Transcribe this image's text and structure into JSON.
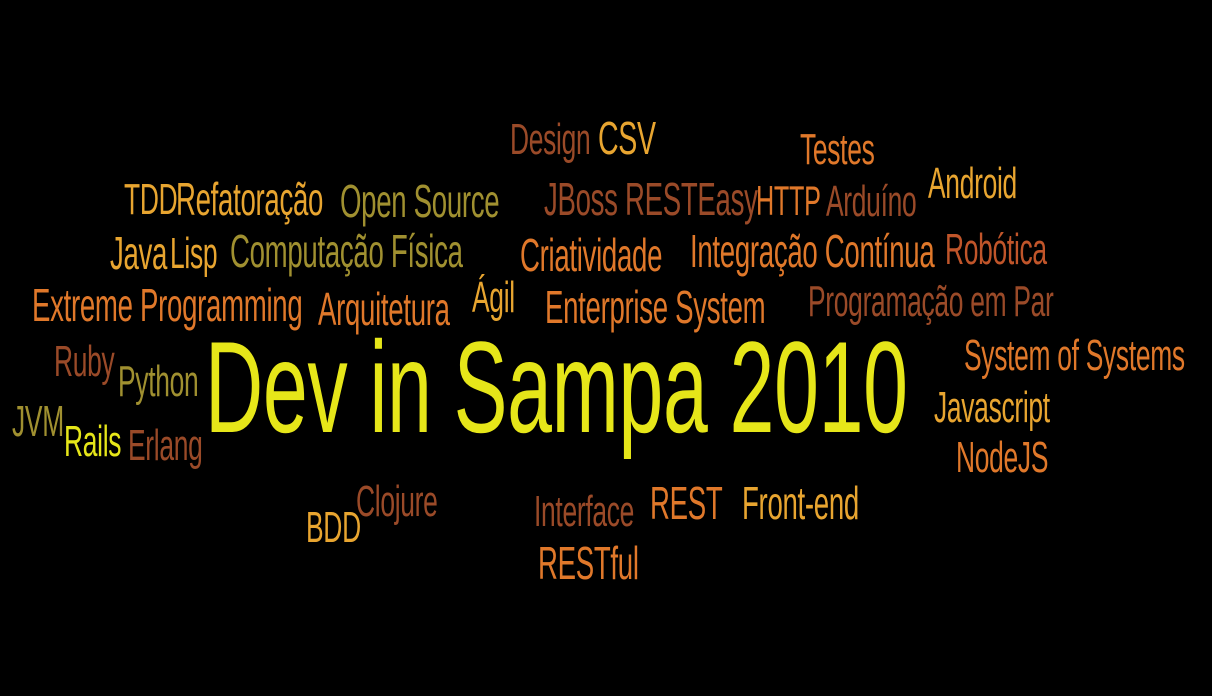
{
  "title": "Dev in Sampa 2010",
  "colors": {
    "background": "#000000",
    "yellow": "#e6e619",
    "amber": "#e8a530",
    "orange": "#e0782a",
    "rust": "#c0552a",
    "brown": "#9a4a28",
    "olive": "#a09030",
    "khaki": "#b8a040"
  },
  "words": [
    {
      "id": "title",
      "text": "Dev in Sampa 2010"
    },
    {
      "id": "design",
      "text": "Design"
    },
    {
      "id": "csv",
      "text": "CSV"
    },
    {
      "id": "testes",
      "text": "Testes"
    },
    {
      "id": "android",
      "text": "Android"
    },
    {
      "id": "tdd",
      "text": "TDD"
    },
    {
      "id": "refatoracao",
      "text": "Refatoração"
    },
    {
      "id": "open-source",
      "text": "Open Source"
    },
    {
      "id": "jboss",
      "text": "JBoss RESTEasy"
    },
    {
      "id": "http",
      "text": "HTTP"
    },
    {
      "id": "arduino",
      "text": "Arduíno"
    },
    {
      "id": "java",
      "text": "Java"
    },
    {
      "id": "lisp",
      "text": "Lisp"
    },
    {
      "id": "computacao-fisica",
      "text": "Computação Física"
    },
    {
      "id": "criatividade",
      "text": "Criatividade"
    },
    {
      "id": "integracao-continua",
      "text": "Integração Contínua"
    },
    {
      "id": "robotica",
      "text": "Robótica"
    },
    {
      "id": "extreme-programming",
      "text": "Extreme Programming"
    },
    {
      "id": "arquitetura",
      "text": "Arquitetura"
    },
    {
      "id": "agil",
      "text": "Ágil"
    },
    {
      "id": "enterprise-system",
      "text": "Enterprise System"
    },
    {
      "id": "programacao-em-par",
      "text": "Programação em Par"
    },
    {
      "id": "system-of-systems",
      "text": "System of Systems"
    },
    {
      "id": "ruby",
      "text": "Ruby"
    },
    {
      "id": "python",
      "text": "Python"
    },
    {
      "id": "javascript",
      "text": "Javascript"
    },
    {
      "id": "jvm",
      "text": "JVM"
    },
    {
      "id": "rails",
      "text": "Rails"
    },
    {
      "id": "erlang",
      "text": "Erlang"
    },
    {
      "id": "nodejs",
      "text": "NodeJS"
    },
    {
      "id": "bdd",
      "text": "BDD"
    },
    {
      "id": "clojure",
      "text": "Clojure"
    },
    {
      "id": "interface",
      "text": "Interface"
    },
    {
      "id": "rest",
      "text": "REST"
    },
    {
      "id": "front-end",
      "text": "Front-end"
    },
    {
      "id": "restful",
      "text": "RESTful"
    }
  ]
}
